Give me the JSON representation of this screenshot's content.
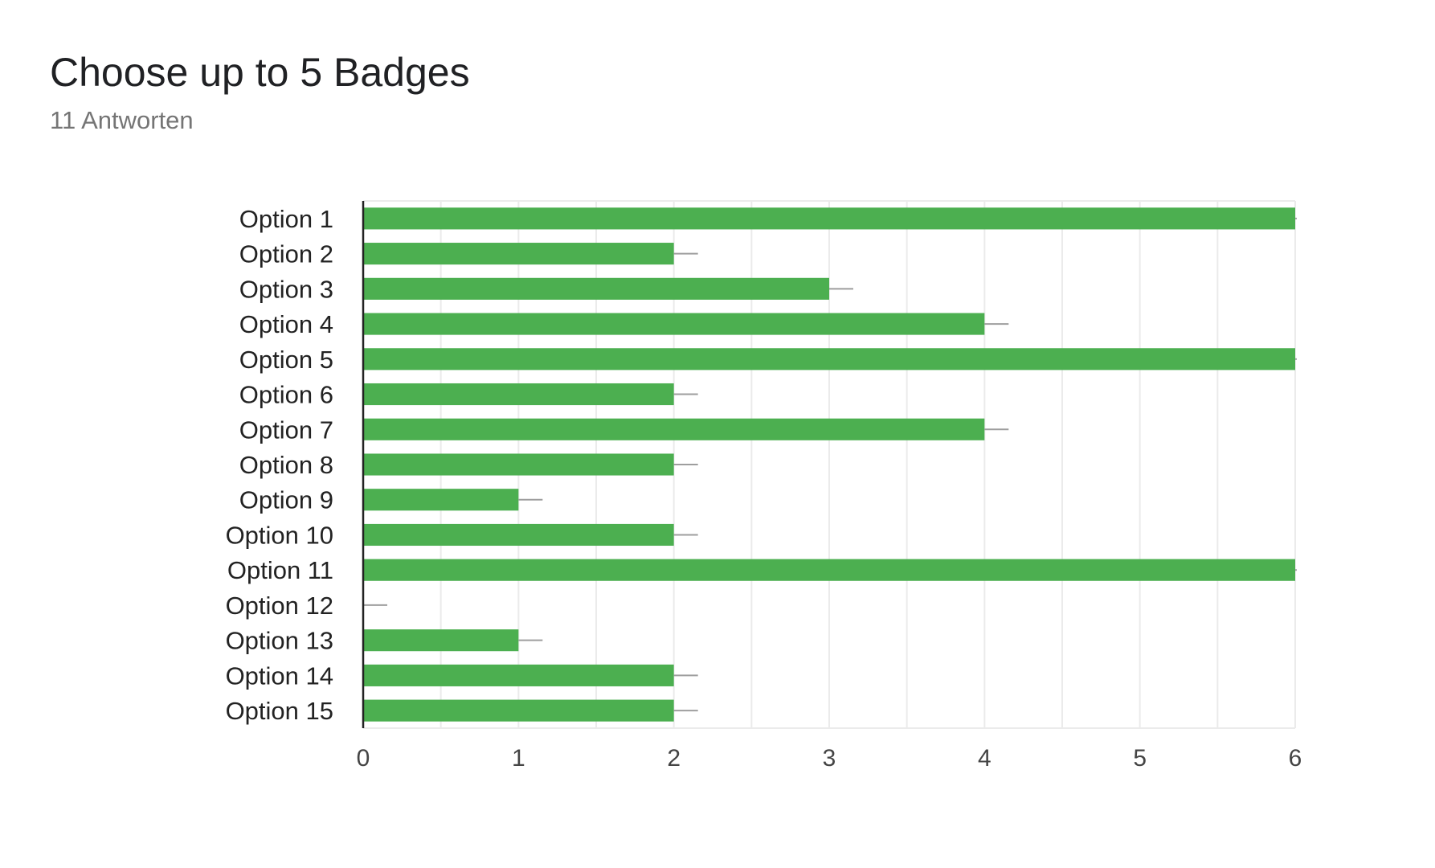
{
  "header": {
    "title": "Choose up to 5 Badges",
    "subtitle": "11 Antworten"
  },
  "chart_data": {
    "type": "bar",
    "orientation": "horizontal",
    "title": "Choose up to 5 Badges",
    "subtitle": "11 Antworten",
    "xlabel": "",
    "ylabel": "",
    "categories": [
      "Option 1",
      "Option 2",
      "Option 3",
      "Option 4",
      "Option 5",
      "Option 6",
      "Option 7",
      "Option 8",
      "Option 9",
      "Option 10",
      "Option 11",
      "Option 12",
      "Option 13",
      "Option 14",
      "Option 15"
    ],
    "values": [
      6,
      2,
      3,
      4,
      6,
      2,
      4,
      2,
      1,
      2,
      6,
      0,
      1,
      2,
      2
    ],
    "xlim": [
      0,
      6
    ],
    "x_ticks": [
      0,
      1,
      2,
      3,
      4,
      5,
      6
    ],
    "grid": true,
    "bar_color": "#4caf50",
    "whisker_color": "#9e9e9e",
    "grid_color": "#ebebeb",
    "axis_color": "#222222",
    "legend": "none"
  }
}
